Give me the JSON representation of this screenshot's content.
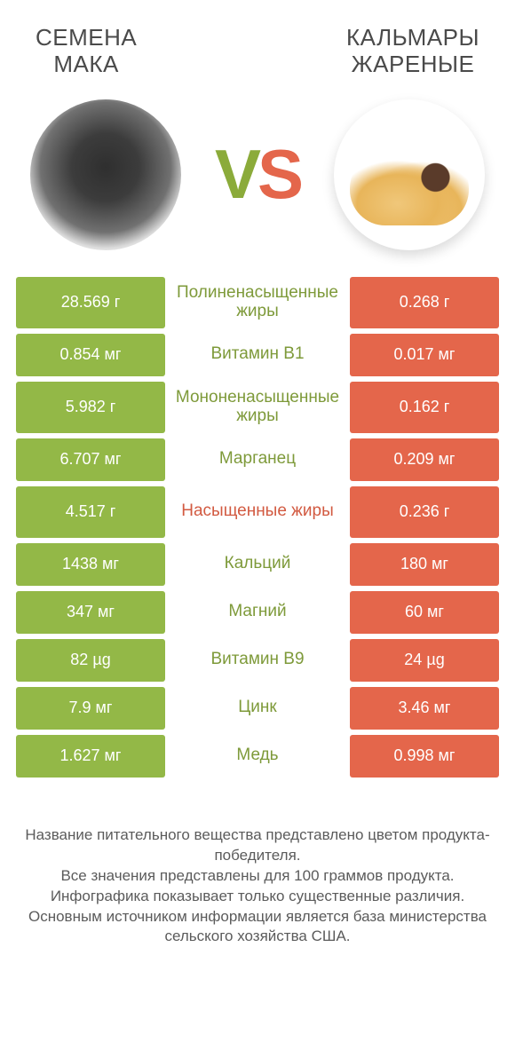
{
  "colors": {
    "green": "#93b847",
    "orange": "#e4664b",
    "mid_green_text": "#7e9a3a",
    "mid_orange_text": "#d25a41",
    "header_text": "#4a4a4a",
    "footer_text": "#5b5b5b",
    "background": "#ffffff"
  },
  "header": {
    "left_title": "СЕМЕНА\nМАКА",
    "right_title": "КАЛЬМАРЫ\nЖАРЕНЫЕ",
    "title_fontsize": 26
  },
  "vs": {
    "v": "V",
    "s": "S",
    "fontsize": 78
  },
  "rows": [
    {
      "left": "28.569 г",
      "mid": "Полиненасыщенные жиры",
      "right": "0.268 г",
      "winner": "left",
      "tall": true
    },
    {
      "left": "0.854 мг",
      "mid": "Витамин B1",
      "right": "0.017 мг",
      "winner": "left",
      "tall": false
    },
    {
      "left": "5.982 г",
      "mid": "Мононенасыщенные жиры",
      "right": "0.162 г",
      "winner": "left",
      "tall": true
    },
    {
      "left": "6.707 мг",
      "mid": "Марганец",
      "right": "0.209 мг",
      "winner": "left",
      "tall": false
    },
    {
      "left": "4.517 г",
      "mid": "Насыщенные жиры",
      "right": "0.236 г",
      "winner": "right",
      "tall": true
    },
    {
      "left": "1438 мг",
      "mid": "Кальций",
      "right": "180 мг",
      "winner": "left",
      "tall": false
    },
    {
      "left": "347 мг",
      "mid": "Магний",
      "right": "60 мг",
      "winner": "left",
      "tall": false
    },
    {
      "left": "82 µg",
      "mid": "Витамин B9",
      "right": "24 µg",
      "winner": "left",
      "tall": false
    },
    {
      "left": "7.9 мг",
      "mid": "Цинк",
      "right": "3.46 мг",
      "winner": "left",
      "tall": false
    },
    {
      "left": "1.627 мг",
      "mid": "Медь",
      "right": "0.998 мг",
      "winner": "left",
      "tall": false
    }
  ],
  "table_style": {
    "cell_fontsize": 18,
    "mid_fontsize": 19,
    "side_cell_width": 168,
    "row_gap": 6,
    "cell_text_color": "#ffffff"
  },
  "footer": {
    "lines": [
      "Название питательного вещества представлено цветом продукта-победителя.",
      "Все значения представлены для 100 граммов продукта.",
      "Инфографика показывает только существенные различия.",
      "Основным источником информации является база министерства сельского хозяйства США."
    ],
    "fontsize": 17
  }
}
